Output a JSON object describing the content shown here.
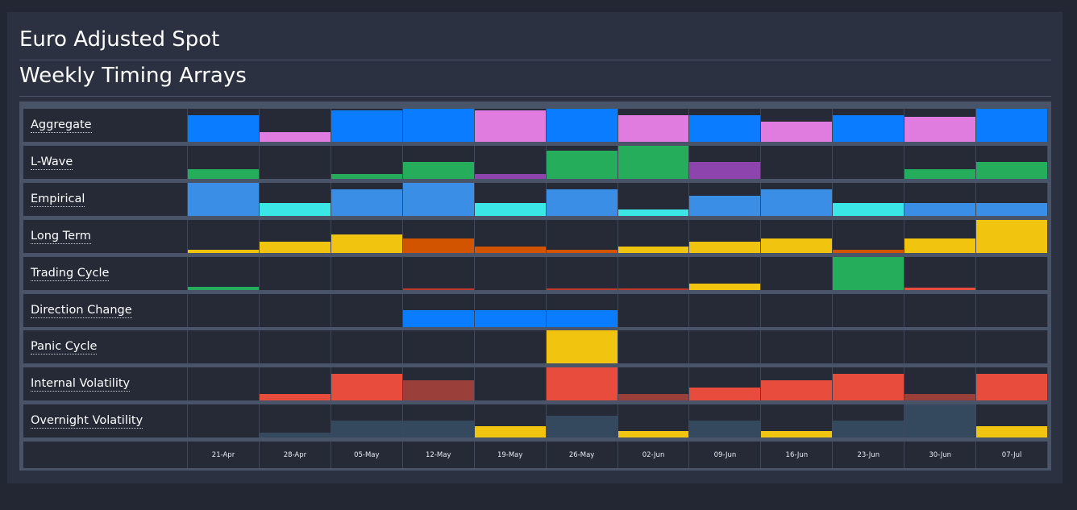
{
  "header": {
    "title": "Euro Adjusted Spot",
    "subtitle": "Weekly Timing Arrays"
  },
  "chart_data": {
    "type": "heatmap",
    "x": [
      "21-Apr",
      "28-Apr",
      "05-May",
      "12-May",
      "19-May",
      "26-May",
      "02-Jun",
      "09-Jun",
      "16-Jun",
      "23-Jun",
      "30-Jun",
      "07-Jul"
    ],
    "series": [
      {
        "name": "Aggregate",
        "values": [
          0.8,
          0.3,
          0.95,
          1,
          0.95,
          1,
          0.8,
          0.8,
          0.6,
          0.8,
          0.75,
          1
        ],
        "colors": [
          "#0a7cff",
          "#e07ce0",
          "#0a7cff",
          "#0a7cff",
          "#e07ce0",
          "#0a7cff",
          "#e07ce0",
          "#0a7cff",
          "#e07ce0",
          "#0a7cff",
          "#e07ce0",
          "#0a7cff"
        ]
      },
      {
        "name": "L-Wave",
        "values": [
          0.3,
          0,
          0.15,
          0.5,
          0.15,
          0.85,
          1,
          0.5,
          0,
          0,
          0.3,
          0.5
        ],
        "colors": [
          "#25ad5c",
          "#25ad5c",
          "#25ad5c",
          "#25ad5c",
          "#8e44ad",
          "#25ad5c",
          "#25ad5c",
          "#8e44ad",
          "#25ad5c",
          "#25ad5c",
          "#25ad5c",
          "#25ad5c"
        ]
      },
      {
        "name": "Empirical",
        "values": [
          1,
          0.4,
          0.8,
          1,
          0.4,
          0.8,
          0.2,
          0.6,
          0.8,
          0.4,
          0.4,
          0.4
        ],
        "colors": [
          "#3a8ee6",
          "#3ae6e6",
          "#3a8ee6",
          "#3a8ee6",
          "#3ae6e6",
          "#3a8ee6",
          "#3ae6e6",
          "#3a8ee6",
          "#3a8ee6",
          "#3ae6e6",
          "#3a8ee6",
          "#3a8ee6"
        ]
      },
      {
        "name": "Long Term",
        "values": [
          0.1,
          0.35,
          0.55,
          0.45,
          0.2,
          0.1,
          0.2,
          0.35,
          0.45,
          0.1,
          0.45,
          1
        ],
        "colors": [
          "#f1c40f",
          "#f1c40f",
          "#f1c40f",
          "#d35400",
          "#d35400",
          "#d35400",
          "#f1c40f",
          "#f1c40f",
          "#f1c40f",
          "#d35400",
          "#f1c40f",
          "#f1c40f"
        ]
      },
      {
        "name": "Trading Cycle",
        "values": [
          0.1,
          0,
          0,
          0.05,
          0,
          0.05,
          0.05,
          0.2,
          0,
          1,
          0.08,
          0
        ],
        "colors": [
          "#25ad5c",
          "#25ad5c",
          "#25ad5c",
          "#c0392b",
          "#c0392b",
          "#c0392b",
          "#c0392b",
          "#f1c40f",
          "#f1c40f",
          "#25ad5c",
          "#e74c3c",
          "#e74c3c"
        ]
      },
      {
        "name": "Direction Change",
        "values": [
          0,
          0,
          0,
          0.5,
          0.5,
          0.5,
          0,
          0,
          0,
          0,
          0,
          0
        ],
        "colors": [
          "#0a7cff",
          "#0a7cff",
          "#0a7cff",
          "#0a7cff",
          "#0a7cff",
          "#0a7cff",
          "#0a7cff",
          "#0a7cff",
          "#0a7cff",
          "#0a7cff",
          "#0a7cff",
          "#0a7cff"
        ]
      },
      {
        "name": "Panic Cycle",
        "values": [
          0,
          0,
          0,
          0,
          0,
          1,
          0,
          0,
          0,
          0,
          0,
          0
        ],
        "colors": [
          "#f1c40f",
          "#f1c40f",
          "#f1c40f",
          "#f1c40f",
          "#f1c40f",
          "#f1c40f",
          "#f1c40f",
          "#f1c40f",
          "#f1c40f",
          "#f1c40f",
          "#f1c40f",
          "#f1c40f"
        ]
      },
      {
        "name": "Internal Volatility",
        "values": [
          0,
          0.2,
          0.8,
          0.6,
          0,
          1,
          0.2,
          0.4,
          0.6,
          0.8,
          0.2,
          0.8
        ],
        "colors": [
          "#e74c3c",
          "#e74c3c",
          "#e74c3c",
          "#9b3f3a",
          "#e74c3c",
          "#e74c3c",
          "#9b3f3a",
          "#e74c3c",
          "#e74c3c",
          "#e74c3c",
          "#9b3f3a",
          "#e74c3c"
        ]
      },
      {
        "name": "Overnight Volatility",
        "values": [
          0,
          0.15,
          0.5,
          0.5,
          0.35,
          0.65,
          0.2,
          0.5,
          0.2,
          0.5,
          1,
          0.35
        ],
        "colors": [
          "#34495e",
          "#34495e",
          "#34495e",
          "#34495e",
          "#f1c40f",
          "#34495e",
          "#f1c40f",
          "#34495e",
          "#f1c40f",
          "#34495e",
          "#34495e",
          "#f1c40f"
        ]
      }
    ]
  }
}
